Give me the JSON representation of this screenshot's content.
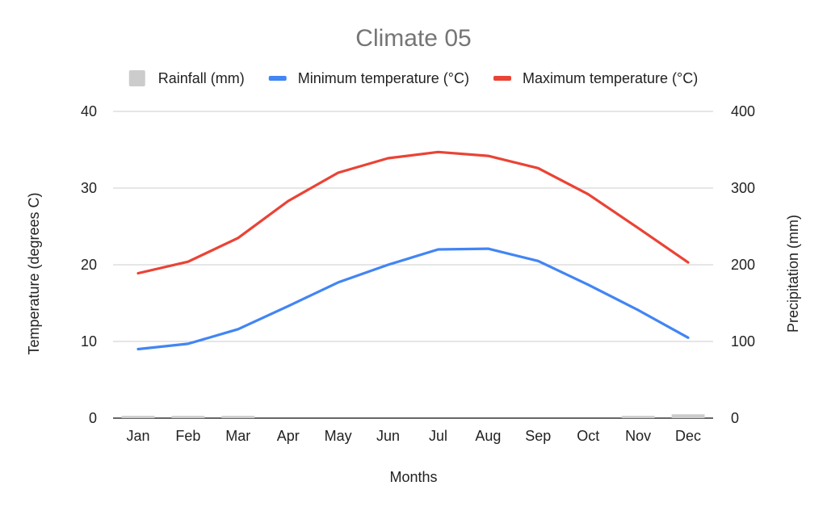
{
  "chart_data": {
    "type": "combo",
    "title": "Climate 05",
    "xlabel": "Months",
    "ylabel_left": "Temperature (degrees C)",
    "ylabel_right": "Precipitation (mm)",
    "categories": [
      "Jan",
      "Feb",
      "Mar",
      "Apr",
      "May",
      "Jun",
      "Jul",
      "Aug",
      "Sep",
      "Oct",
      "Nov",
      "Dec"
    ],
    "ylim_left": [
      0,
      40
    ],
    "ylim_right": [
      0,
      400
    ],
    "yticks_left": [
      "0",
      "10",
      "20",
      "30",
      "40"
    ],
    "yticks_right": [
      "0",
      "100",
      "200",
      "300",
      "400"
    ],
    "grid": true,
    "legend_position": "top",
    "series": [
      {
        "name": "Rainfall (mm)",
        "type": "bar",
        "axis": "right",
        "color": "#cccccc",
        "values": [
          3,
          3,
          3,
          0,
          0,
          0,
          0,
          0,
          0,
          0,
          3,
          5
        ]
      },
      {
        "name": "Minimum temperature (°C)",
        "type": "line",
        "axis": "left",
        "color": "#4285f4",
        "values": [
          9.0,
          9.7,
          11.6,
          14.6,
          17.7,
          20.0,
          22.0,
          22.1,
          20.5,
          17.4,
          14.1,
          10.5
        ]
      },
      {
        "name": "Maximum temperature (°C)",
        "type": "line",
        "axis": "left",
        "color": "#ea4335",
        "values": [
          18.9,
          20.4,
          23.5,
          28.3,
          32.0,
          33.9,
          34.7,
          34.2,
          32.6,
          29.2,
          24.8,
          20.3
        ]
      }
    ]
  }
}
